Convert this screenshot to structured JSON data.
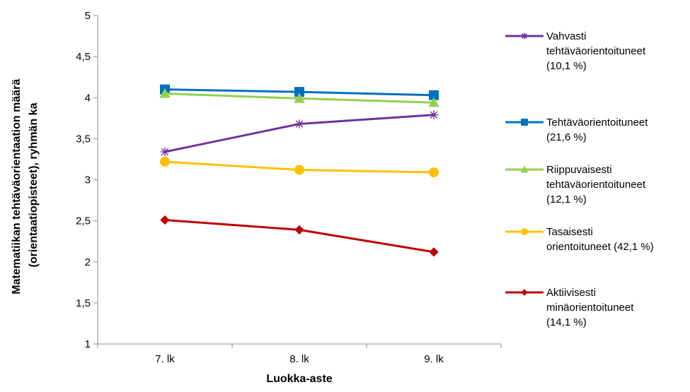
{
  "chart_data": {
    "type": "line",
    "title": "",
    "xlabel": "Luokka-aste",
    "ylabel_lines": [
      "Matematiikan tehtäväorientaation määrä",
      "(orientaatiopisteet), ryhmän ka"
    ],
    "categories": [
      "7. lk",
      "8. lk",
      "9. lk"
    ],
    "ylim": [
      1,
      5
    ],
    "yticks": [
      1,
      1.5,
      2,
      2.5,
      3,
      3.5,
      4,
      4.5,
      5
    ],
    "ytick_labels": [
      "1",
      "1,5",
      "2",
      "2,5",
      "3",
      "3,5",
      "4",
      "4,5",
      "5"
    ],
    "grid": false,
    "legend_position": "right",
    "series": [
      {
        "name": "Vahvasti tehtäväorientoituneet (10,1 %)",
        "legend_lines": [
          "Vahvasti",
          "tehtäväorientoituneet",
          "(10,1 %)"
        ],
        "color": "#7030a0",
        "marker": "star",
        "values": [
          3.34,
          3.68,
          3.79
        ]
      },
      {
        "name": "Tehtäväorientoituneet (21,6 %)",
        "legend_lines": [
          "Tehtäväorientoituneet",
          "(21,6 %)"
        ],
        "color": "#0070c0",
        "marker": "square",
        "values": [
          4.1,
          4.07,
          4.03
        ]
      },
      {
        "name": "Riippuvaisesti tehtäväorientoituneet (12,1 %)",
        "legend_lines": [
          "Riippuvaisesti",
          "tehtäväorientoituneet",
          "(12,1 %)"
        ],
        "color": "#92d050",
        "marker": "triangle",
        "values": [
          4.05,
          3.99,
          3.94
        ]
      },
      {
        "name": "Tasaisesti orientoituneet (42,1 %)",
        "legend_lines": [
          "Tasaisesti",
          "orientoituneet (42,1 %)"
        ],
        "color": "#ffc000",
        "marker": "circle",
        "values": [
          3.22,
          3.12,
          3.09
        ]
      },
      {
        "name": "Aktiivisesti minäorientoituneet (14,1 %)",
        "legend_lines": [
          "Aktiivisesti",
          "minäorientoituneet",
          "(14,1 %)"
        ],
        "color": "#c00000",
        "marker": "diamond",
        "values": [
          2.51,
          2.39,
          2.12
        ]
      }
    ]
  }
}
